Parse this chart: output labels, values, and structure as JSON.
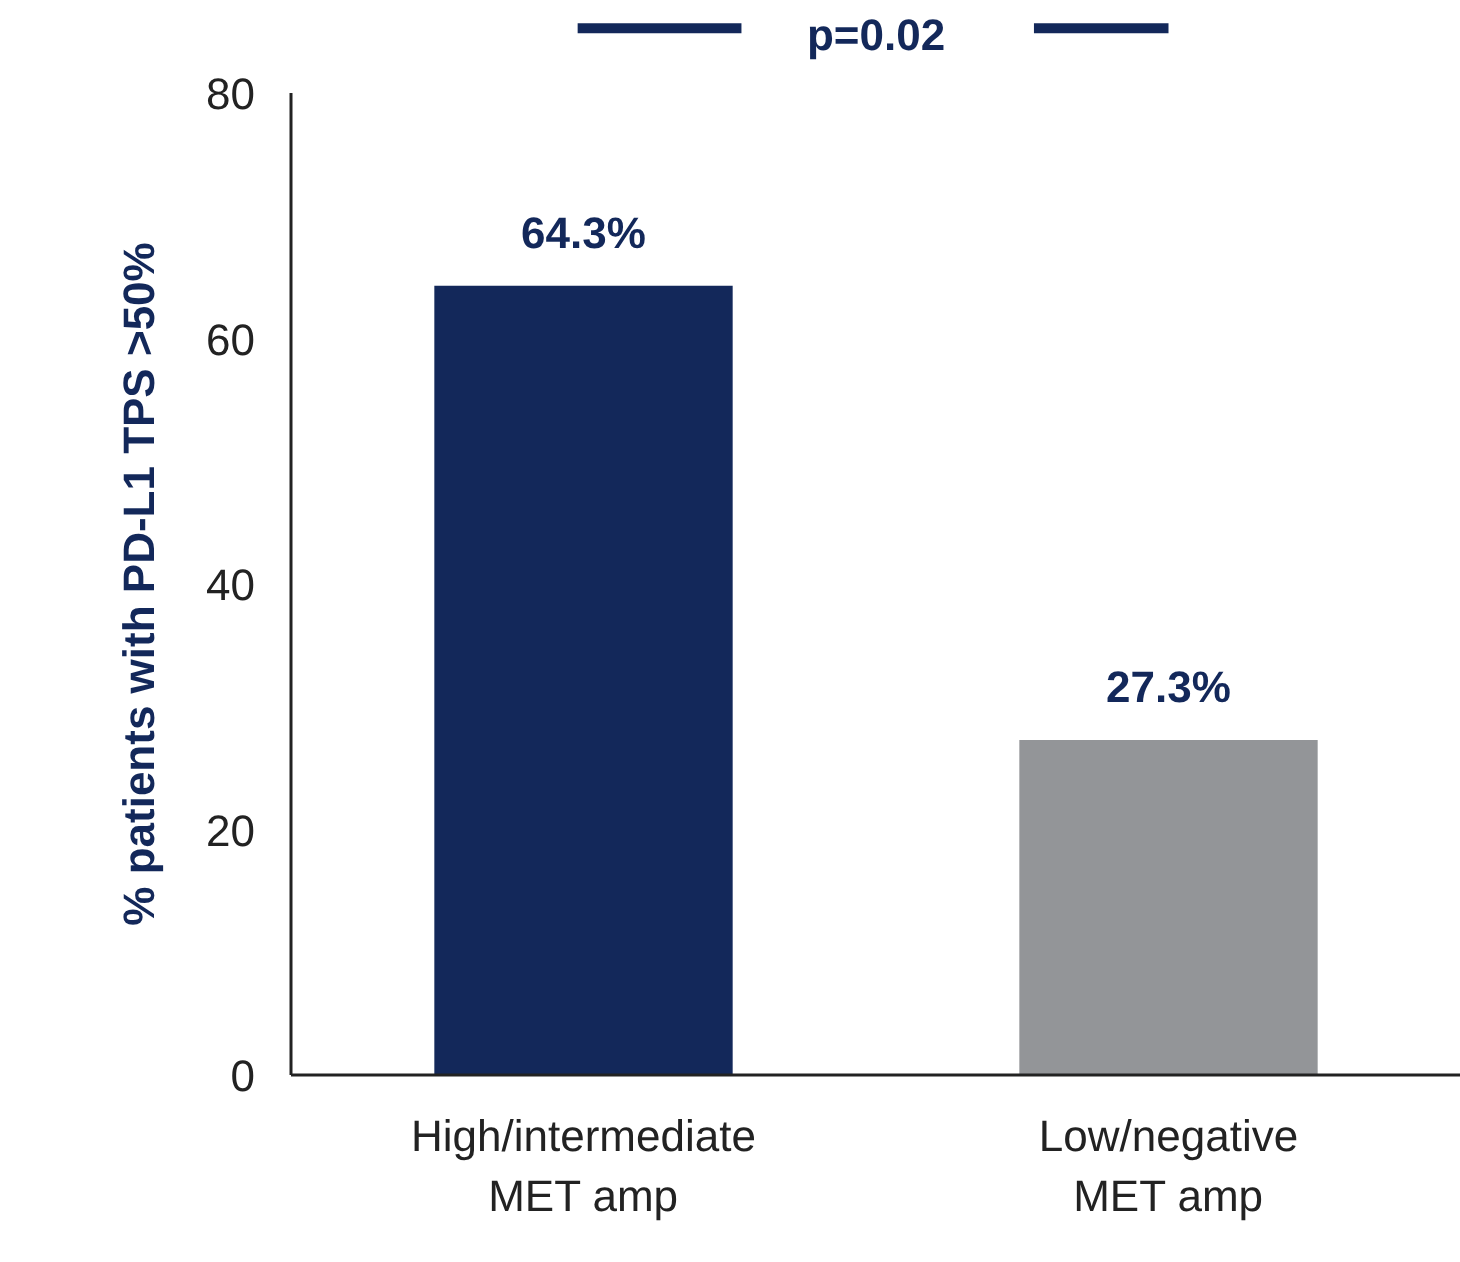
{
  "chart_data": {
    "type": "bar",
    "ylabel": "% patients with PD-L1 TPS >50%",
    "categories": [
      "High/intermediate\nMET amp",
      "Low/negative\nMET amp"
    ],
    "values": [
      64.3,
      27.3
    ],
    "value_labels": [
      "64.3%",
      "27.3%"
    ],
    "colors": [
      "#13285a",
      "#939598"
    ],
    "ylim": [
      0,
      80
    ],
    "yticks": [
      0,
      20,
      40,
      60,
      80
    ],
    "grid": false,
    "annotations": [
      "p=0.02"
    ]
  }
}
